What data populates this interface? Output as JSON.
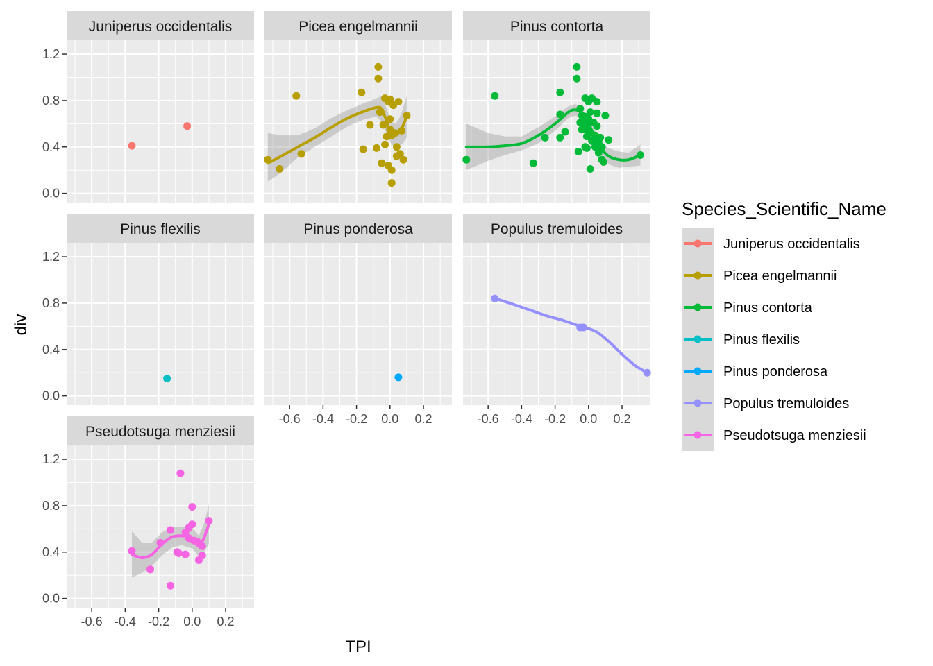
{
  "chart_data": {
    "type": "scatter",
    "facet": "Species_Scientific_Name",
    "xlabel": "TPI",
    "ylabel": "div",
    "xlim": [
      -0.75,
      0.37
    ],
    "ylim": [
      -0.08,
      1.32
    ],
    "x_ticks": [
      -0.6,
      -0.4,
      -0.2,
      0.0,
      0.2
    ],
    "x_tick_labels": [
      "-0.6",
      "-0.4",
      "-0.2",
      "0.0",
      "0.2"
    ],
    "y_ticks": [
      0.0,
      0.4,
      0.8,
      1.2
    ],
    "y_tick_labels": [
      "0.0",
      "0.4",
      "0.8",
      "1.2"
    ],
    "grid": true,
    "legend": {
      "title": "Species_Scientific_Name",
      "position": "right",
      "entries": [
        "Juniperus occidentalis",
        "Picea engelmannii",
        "Pinus contorta",
        "Pinus flexilis",
        "Pinus ponderosa",
        "Populus tremuloides",
        "Pseudotsuga menziesii"
      ]
    },
    "panels": [
      {
        "name": "Juniperus occidentalis",
        "color": "#F8766D",
        "points": [
          [
            -0.36,
            0.41
          ],
          [
            -0.03,
            0.58
          ]
        ],
        "smooth": null
      },
      {
        "name": "Picea engelmannii",
        "color": "#B79F00",
        "points": [
          [
            -0.73,
            0.29
          ],
          [
            -0.66,
            0.21
          ],
          [
            -0.56,
            0.84
          ],
          [
            -0.53,
            0.34
          ],
          [
            -0.17,
            0.87
          ],
          [
            -0.16,
            0.38
          ],
          [
            -0.12,
            0.59
          ],
          [
            -0.08,
            0.39
          ],
          [
            -0.07,
            0.99
          ],
          [
            -0.07,
            1.09
          ],
          [
            -0.06,
            0.7
          ],
          [
            -0.05,
            0.26
          ],
          [
            -0.04,
            0.59
          ],
          [
            -0.03,
            0.82
          ],
          [
            -0.03,
            0.42
          ],
          [
            -0.02,
            0.49
          ],
          [
            -0.01,
            0.79
          ],
          [
            -0.01,
            0.24
          ],
          [
            0.0,
            0.81
          ],
          [
            0.0,
            0.64
          ],
          [
            0.0,
            0.55
          ],
          [
            0.01,
            0.5
          ],
          [
            0.01,
            0.2
          ],
          [
            0.01,
            0.09
          ],
          [
            0.02,
            0.76
          ],
          [
            0.03,
            0.52
          ],
          [
            0.04,
            0.32
          ],
          [
            0.04,
            0.4
          ],
          [
            0.05,
            0.79
          ],
          [
            0.06,
            0.34
          ],
          [
            0.07,
            0.54
          ],
          [
            0.08,
            0.29
          ],
          [
            0.1,
            0.67
          ]
        ],
        "smooth": {
          "x": [
            -0.73,
            -0.65,
            -0.55,
            -0.45,
            -0.35,
            -0.25,
            -0.15,
            -0.08,
            -0.05,
            -0.03,
            -0.01,
            0.01,
            0.03,
            0.05,
            0.07,
            0.1
          ],
          "y": [
            0.26,
            0.32,
            0.4,
            0.48,
            0.57,
            0.65,
            0.71,
            0.74,
            0.73,
            0.66,
            0.58,
            0.52,
            0.5,
            0.52,
            0.56,
            0.66
          ],
          "lower": [
            0.1,
            0.18,
            0.31,
            0.4,
            0.49,
            0.58,
            0.64,
            0.66,
            0.62,
            0.55,
            0.47,
            0.42,
            0.4,
            0.41,
            0.42,
            0.48
          ],
          "upper": [
            0.52,
            0.5,
            0.5,
            0.56,
            0.65,
            0.72,
            0.78,
            0.82,
            0.84,
            0.77,
            0.69,
            0.62,
            0.6,
            0.63,
            0.7,
            0.84
          ]
        }
      },
      {
        "name": "Pinus contorta",
        "color": "#00BA38",
        "points": [
          [
            -0.73,
            0.29
          ],
          [
            -0.56,
            0.84
          ],
          [
            -0.33,
            0.26
          ],
          [
            -0.26,
            0.48
          ],
          [
            -0.17,
            0.87
          ],
          [
            -0.17,
            0.48
          ],
          [
            -0.17,
            0.68
          ],
          [
            -0.14,
            0.53
          ],
          [
            -0.07,
            0.99
          ],
          [
            -0.07,
            1.09
          ],
          [
            -0.06,
            0.36
          ],
          [
            -0.05,
            0.73
          ],
          [
            -0.05,
            0.61
          ],
          [
            -0.04,
            0.55
          ],
          [
            -0.04,
            0.67
          ],
          [
            -0.03,
            0.6
          ],
          [
            -0.02,
            0.82
          ],
          [
            -0.02,
            0.66
          ],
          [
            -0.02,
            0.4
          ],
          [
            -0.01,
            0.57
          ],
          [
            -0.01,
            0.49
          ],
          [
            -0.01,
            0.39
          ],
          [
            0.0,
            0.79
          ],
          [
            0.0,
            0.64
          ],
          [
            0.0,
            0.52
          ],
          [
            0.01,
            0.7
          ],
          [
            0.01,
            0.21
          ],
          [
            0.02,
            0.82
          ],
          [
            0.02,
            0.45
          ],
          [
            0.03,
            0.61
          ],
          [
            0.04,
            0.5
          ],
          [
            0.04,
            0.4
          ],
          [
            0.05,
            0.79
          ],
          [
            0.05,
            0.69
          ],
          [
            0.05,
            0.58
          ],
          [
            0.06,
            0.35
          ],
          [
            0.06,
            0.44
          ],
          [
            0.07,
            0.48
          ],
          [
            0.08,
            0.29
          ],
          [
            0.08,
            0.4
          ],
          [
            0.09,
            0.27
          ],
          [
            0.1,
            0.67
          ],
          [
            0.12,
            0.46
          ],
          [
            0.31,
            0.33
          ]
        ],
        "smooth": {
          "x": [
            -0.73,
            -0.6,
            -0.5,
            -0.4,
            -0.3,
            -0.2,
            -0.12,
            -0.08,
            -0.04,
            0.0,
            0.04,
            0.08,
            0.12,
            0.18,
            0.24,
            0.31
          ],
          "y": [
            0.4,
            0.4,
            0.41,
            0.43,
            0.5,
            0.6,
            0.7,
            0.72,
            0.69,
            0.6,
            0.48,
            0.38,
            0.32,
            0.29,
            0.29,
            0.33
          ],
          "lower": [
            0.2,
            0.28,
            0.33,
            0.37,
            0.43,
            0.54,
            0.65,
            0.67,
            0.65,
            0.56,
            0.43,
            0.33,
            0.25,
            0.22,
            0.23,
            0.24
          ],
          "upper": [
            0.6,
            0.52,
            0.49,
            0.49,
            0.57,
            0.66,
            0.75,
            0.77,
            0.73,
            0.64,
            0.53,
            0.43,
            0.39,
            0.36,
            0.35,
            0.42
          ]
        }
      },
      {
        "name": "Pinus flexilis",
        "color": "#00BFC4",
        "points": [
          [
            -0.15,
            0.15
          ]
        ],
        "smooth": null
      },
      {
        "name": "Pinus ponderosa",
        "color": "#00A9FF",
        "points": [
          [
            0.05,
            0.16
          ]
        ],
        "smooth": null
      },
      {
        "name": "Populus tremuloides",
        "color": "#9590FF",
        "points": [
          [
            -0.56,
            0.84
          ],
          [
            -0.05,
            0.59
          ],
          [
            -0.03,
            0.59
          ],
          [
            0.35,
            0.2
          ]
        ],
        "smooth": {
          "x": [
            -0.56,
            -0.45,
            -0.35,
            -0.25,
            -0.15,
            -0.05,
            0.0,
            0.05,
            0.12,
            0.2,
            0.28,
            0.35
          ],
          "y": [
            0.84,
            0.79,
            0.74,
            0.69,
            0.65,
            0.6,
            0.58,
            0.55,
            0.47,
            0.36,
            0.26,
            0.2
          ],
          "lower": null,
          "upper": null
        }
      },
      {
        "name": "Pseudotsuga menziesii",
        "color": "#F564E3",
        "points": [
          [
            -0.36,
            0.41
          ],
          [
            -0.25,
            0.25
          ],
          [
            -0.19,
            0.48
          ],
          [
            -0.13,
            0.11
          ],
          [
            -0.13,
            0.59
          ],
          [
            -0.09,
            0.4
          ],
          [
            -0.08,
            0.39
          ],
          [
            -0.07,
            1.08
          ],
          [
            -0.04,
            0.57
          ],
          [
            -0.04,
            0.38
          ],
          [
            -0.02,
            0.61
          ],
          [
            -0.02,
            0.52
          ],
          [
            0.0,
            0.79
          ],
          [
            0.0,
            0.64
          ],
          [
            0.01,
            0.5
          ],
          [
            0.03,
            0.49
          ],
          [
            0.04,
            0.33
          ],
          [
            0.06,
            0.45
          ],
          [
            0.06,
            0.37
          ],
          [
            0.1,
            0.67
          ]
        ],
        "smooth": {
          "x": [
            -0.36,
            -0.3,
            -0.24,
            -0.18,
            -0.12,
            -0.06,
            0.0,
            0.04,
            0.07,
            0.1
          ],
          "y": [
            0.38,
            0.35,
            0.38,
            0.47,
            0.53,
            0.54,
            0.52,
            0.45,
            0.52,
            0.64
          ],
          "lower": [
            0.18,
            0.22,
            0.28,
            0.37,
            0.44,
            0.46,
            0.43,
            0.36,
            0.4,
            0.47
          ],
          "upper": [
            0.58,
            0.48,
            0.48,
            0.57,
            0.62,
            0.62,
            0.61,
            0.54,
            0.64,
            0.81
          ]
        }
      }
    ]
  }
}
